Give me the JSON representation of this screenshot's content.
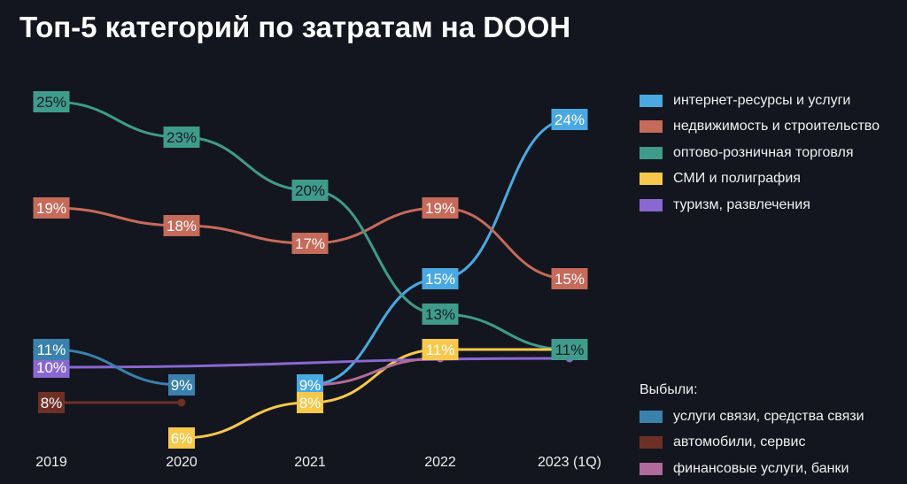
{
  "chart_data": {
    "type": "line",
    "title": "Топ-5 категорий по затратам на DOOH",
    "categories": [
      "2019",
      "2020",
      "2021",
      "2022",
      "2023 (1Q)"
    ],
    "ylabel": "",
    "xlabel": "",
    "series": [
      {
        "name": "интернет-ресурсы и услуги",
        "color": "#4aa9e2",
        "text": "#ffffff",
        "values": [
          null,
          null,
          9,
          15,
          24
        ],
        "labels": [
          "",
          "",
          "9%",
          "15%",
          "24%"
        ],
        "group": "top"
      },
      {
        "name": "недвижимость и строительство",
        "color": "#c66a5a",
        "text": "#ffffff",
        "values": [
          19,
          18,
          17,
          19,
          15
        ],
        "labels": [
          "19%",
          "18%",
          "17%",
          "19%",
          "15%"
        ],
        "group": "top"
      },
      {
        "name": "оптово-розничная торговля",
        "color": "#3f9b8b",
        "text": "#1a1d24",
        "values": [
          25,
          23,
          20,
          13,
          11
        ],
        "labels": [
          "25%",
          "23%",
          "20%",
          "13%",
          "11%"
        ],
        "group": "top"
      },
      {
        "name": "СМИ и полиграфия",
        "color": "#f6c94c",
        "text": "#ffffff",
        "values": [
          null,
          6,
          8,
          11,
          11
        ],
        "labels": [
          "",
          "6%",
          "8%",
          "11%",
          ""
        ],
        "group": "top"
      },
      {
        "name": "туризм, развлечения",
        "color": "#8a68d2",
        "text": "#ffffff",
        "values": [
          10,
          null,
          null,
          null,
          10.5
        ],
        "labels": [
          "10%",
          "",
          "",
          "",
          ""
        ],
        "group": "top"
      },
      {
        "name": "услуги связи, средства связи",
        "color": "#3a81ad",
        "text": "#ffffff",
        "values": [
          11,
          9,
          null,
          null,
          null
        ],
        "labels": [
          "11%",
          "9%",
          "",
          "",
          ""
        ],
        "group": "dropped"
      },
      {
        "name": "автомобили, сервис",
        "color": "#6e3026",
        "text": "#ffffff",
        "values": [
          8,
          8,
          null,
          null,
          null
        ],
        "labels": [
          "8%",
          "",
          "",
          "",
          ""
        ],
        "group": "dropped"
      },
      {
        "name": "финансовые услуги, банки",
        "color": "#b06a9b",
        "text": "#ffffff",
        "values": [
          null,
          null,
          9,
          10.5,
          null
        ],
        "labels": [
          "",
          "",
          "",
          "",
          ""
        ],
        "group": "dropped"
      }
    ]
  },
  "legend": {
    "dropped_title": "Выбыли:"
  }
}
